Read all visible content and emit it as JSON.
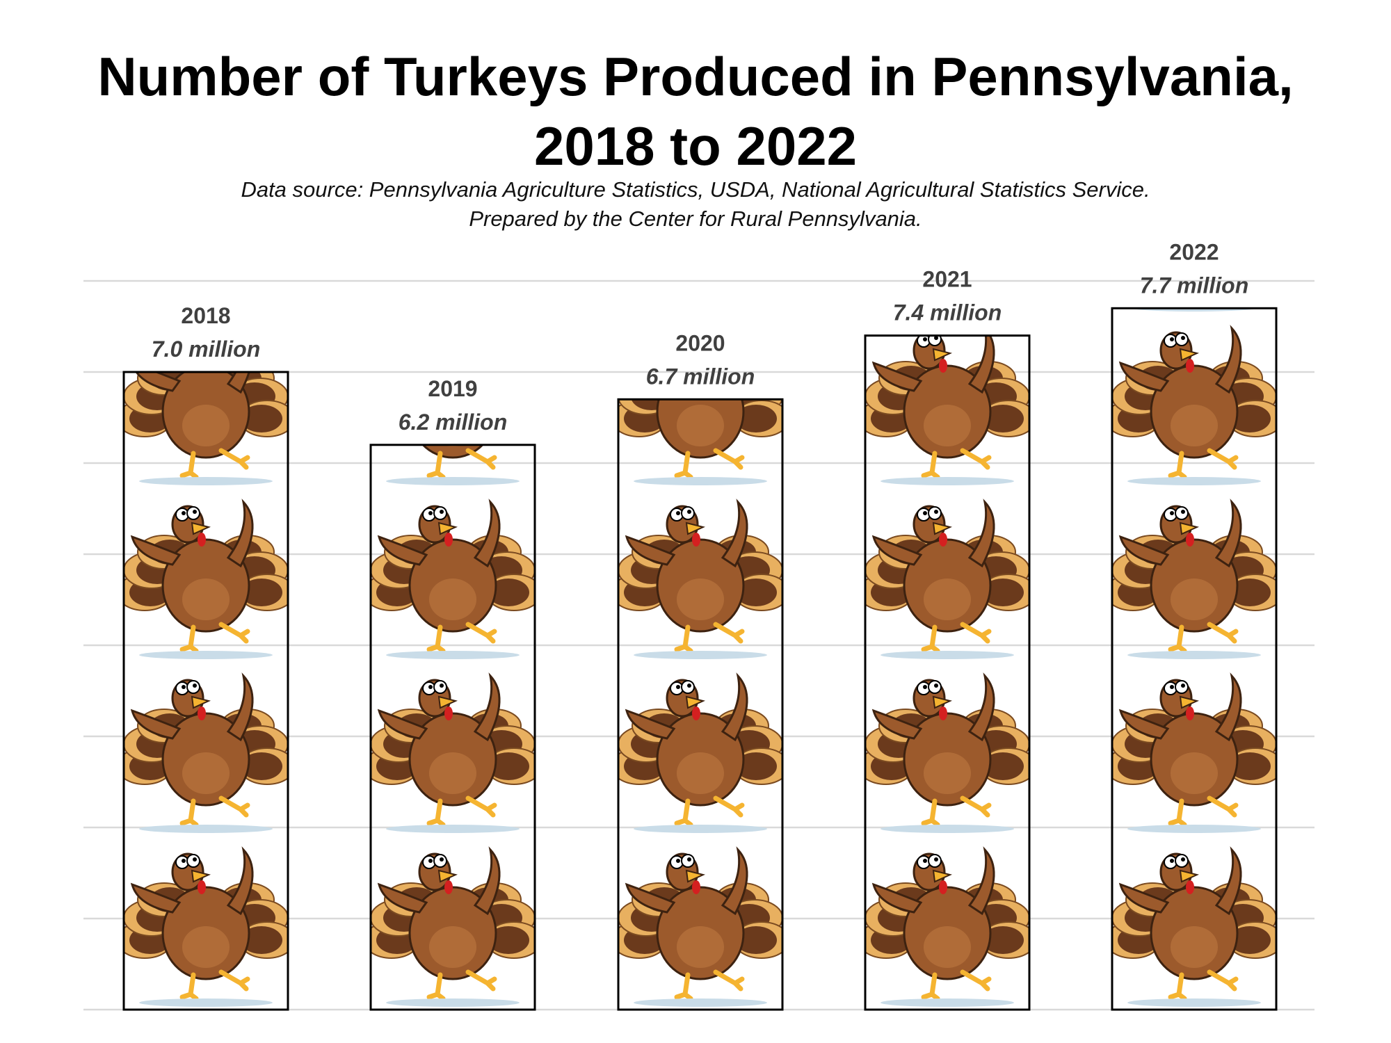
{
  "title_lines": [
    "Number of Turkeys Produced in Pennsylvania,",
    "2018 to 2022"
  ],
  "subtitle_lines": [
    "Data source: Pennsylvania Agriculture Statistics, USDA, National Agricultural Statistics Service.",
    "Prepared by the Center for Rural Pennsylvania."
  ],
  "chart_data": {
    "type": "bar",
    "title": "Number of Turkeys Produced in Pennsylvania, 2018 to 2022",
    "categories": [
      "2018",
      "2019",
      "2020",
      "2021",
      "2022"
    ],
    "values": [
      7.0,
      6.2,
      6.7,
      7.4,
      7.7
    ],
    "value_labels": [
      "7.0 million",
      "6.2 million",
      "6.7 million",
      "7.4 million",
      "7.7 million"
    ],
    "unit": "million",
    "ylim": [
      0,
      8
    ],
    "grid": true,
    "bar_fill": "turkey-pictogram",
    "colors": {
      "grid": "#d9d9d9",
      "bar_border": "#000000",
      "label": "#404040",
      "turkey_body": "#9c5a2c",
      "turkey_dark": "#6b3a1c",
      "turkey_light": "#e8b060",
      "turkey_beak": "#f5b431",
      "turkey_wattle": "#d42020",
      "shadow": "#c9dce8"
    }
  }
}
